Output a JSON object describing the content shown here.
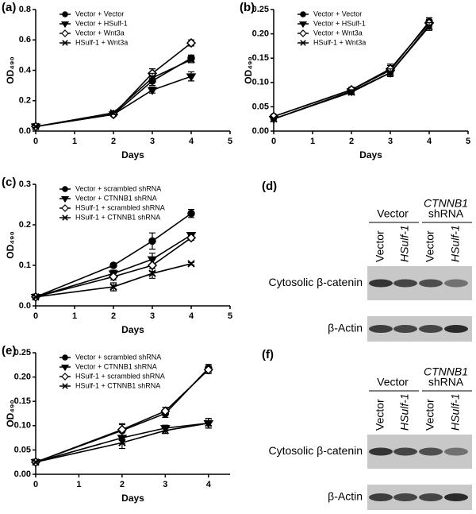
{
  "chart_data": [
    {
      "type": "line",
      "panel_label": "(a)",
      "x_label": "Days",
      "y_label": "OD₄₉₀",
      "legend": "upper left",
      "xlim": [
        0,
        5
      ],
      "xticks": [
        0,
        1,
        2,
        3,
        4,
        5
      ],
      "ylim": [
        0,
        0.8
      ],
      "yticks": [
        {
          "value": 0,
          "label": "0.0"
        },
        0.2,
        0.4,
        0.6,
        0.8
      ],
      "x": [
        0,
        2,
        3,
        4
      ],
      "series": [
        {
          "name": "Vector + Vector",
          "marker": "circle",
          "color": "#000000",
          "values": [
            0.03,
            0.11,
            0.33,
            0.48
          ],
          "errors": [
            0.005,
            0.01,
            0.03,
            0.02
          ]
        },
        {
          "name": "Vector + HSulf-1",
          "marker": "triangle",
          "color": "#000000",
          "values": [
            0.03,
            0.11,
            0.27,
            0.36
          ],
          "errors": [
            0.005,
            0.01,
            0.02,
            0.03
          ]
        },
        {
          "name": "Vector + Wnt3a",
          "marker": "diamond",
          "color": "#000000",
          "values": [
            0.03,
            0.11,
            0.38,
            0.58
          ],
          "errors": [
            0.005,
            0.01,
            0.03,
            0.02
          ]
        },
        {
          "name": "HSulf-1 + Wnt3a",
          "marker": "cross",
          "color": "#000000",
          "values": [
            0.03,
            0.12,
            0.35,
            0.47
          ],
          "errors": [
            0.005,
            0.01,
            0.03,
            0.02
          ]
        }
      ]
    },
    {
      "type": "line",
      "panel_label": "(b)",
      "x_label": "Days",
      "y_label": "OD₄₉₀",
      "legend": "upper left",
      "xlim": [
        0,
        5
      ],
      "xticks": [
        0,
        1,
        2,
        3,
        4,
        5
      ],
      "ylim": [
        0,
        0.25
      ],
      "yticks": [
        {
          "value": 0,
          "label": "0.00"
        },
        0.05,
        {
          "value": 0.1,
          "label": "0.10"
        },
        0.15,
        {
          "value": 0.2,
          "label": "0.20"
        },
        0.25
      ],
      "x": [
        0,
        2,
        3,
        4
      ],
      "series": [
        {
          "name": "Vector + Vector",
          "marker": "circle",
          "color": "#000000",
          "values": [
            0.03,
            0.085,
            0.125,
            0.225
          ],
          "errors": [
            0.002,
            0.005,
            0.01,
            0.008
          ]
        },
        {
          "name": "Vector + HSulf-1",
          "marker": "triangle",
          "color": "#000000",
          "values": [
            0.025,
            0.082,
            0.12,
            0.218
          ],
          "errors": [
            0.002,
            0.005,
            0.008,
            0.008
          ]
        },
        {
          "name": "Vector + Wnt3a",
          "marker": "diamond",
          "color": "#000000",
          "values": [
            0.03,
            0.085,
            0.128,
            0.222
          ],
          "errors": [
            0.002,
            0.005,
            0.01,
            0.008
          ]
        },
        {
          "name": "HSulf-1 + Wnt3a",
          "marker": "cross",
          "color": "#000000",
          "values": [
            0.025,
            0.08,
            0.12,
            0.215
          ],
          "errors": [
            0.002,
            0.005,
            0.008,
            0.008
          ]
        }
      ]
    },
    {
      "type": "line",
      "panel_label": "(c)",
      "x_label": "Days",
      "y_label": "OD₄₉₀",
      "legend": "upper left",
      "xlim": [
        0,
        5
      ],
      "xticks": [
        0,
        1,
        2,
        3,
        4,
        5
      ],
      "ylim": [
        0,
        0.3
      ],
      "yticks": [
        {
          "value": 0,
          "label": "0.0"
        },
        0.1,
        0.2,
        0.3
      ],
      "x": [
        0,
        2,
        3,
        4
      ],
      "series": [
        {
          "name": "Vector + scrambled shRNA",
          "marker": "circle",
          "color": "#000000",
          "values": [
            0.022,
            0.1,
            0.16,
            0.228
          ],
          "errors": [
            0.002,
            0.005,
            0.02,
            0.01
          ]
        },
        {
          "name": "Vector + CTNNB1 shRNA",
          "marker": "triangle",
          "color": "#000000",
          "values": [
            0.022,
            0.08,
            0.115,
            0.175
          ],
          "errors": [
            0.002,
            0.008,
            0.015,
            0.006
          ]
        },
        {
          "name": "HSulf-1 + scrambled shRNA",
          "marker": "diamond",
          "color": "#000000",
          "values": [
            0.022,
            0.072,
            0.1,
            0.168
          ],
          "errors": [
            0.002,
            0.008,
            0.015,
            0.006
          ]
        },
        {
          "name": "HSulf-1 + CTNNB1 shRNA",
          "marker": "cross",
          "color": "#000000",
          "values": [
            0.022,
            0.047,
            0.08,
            0.104
          ],
          "errors": [
            0.002,
            0.01,
            0.012,
            0.003
          ]
        }
      ]
    },
    {
      "type": "line",
      "panel_label": "(e)",
      "x_label": "Days",
      "y_label": "OD₄₉₀",
      "legend": "upper left",
      "xlim": [
        0,
        4.5
      ],
      "xticks": [
        0,
        1,
        2,
        3,
        4
      ],
      "ylim": [
        0,
        0.25
      ],
      "yticks": [
        {
          "value": 0,
          "label": "0.00"
        },
        0.05,
        {
          "value": 0.1,
          "label": "0.10"
        },
        0.15,
        {
          "value": 0.2,
          "label": "0.20"
        },
        0.25
      ],
      "x": [
        0,
        2,
        3,
        4
      ],
      "series": [
        {
          "name": "Vector + scrambled shRNA",
          "marker": "circle",
          "color": "#000000",
          "values": [
            0.025,
            0.09,
            0.125,
            0.218
          ],
          "errors": [
            0.002,
            0.012,
            0.008,
            0.008
          ]
        },
        {
          "name": "Vector + CTNNB1 shRNA",
          "marker": "triangle",
          "color": "#000000",
          "values": [
            0.025,
            0.075,
            0.095,
            0.105
          ],
          "errors": [
            0.002,
            0.012,
            0.006,
            0.01
          ]
        },
        {
          "name": "HSulf-1 + scrambled shRNA",
          "marker": "diamond",
          "color": "#000000",
          "values": [
            0.025,
            0.092,
            0.13,
            0.215
          ],
          "errors": [
            0.002,
            0.012,
            0.008,
            0.008
          ]
        },
        {
          "name": "HSulf-1 + CTNNB1 shRNA",
          "marker": "cross",
          "color": "#000000",
          "values": [
            0.025,
            0.065,
            0.09,
            0.105
          ],
          "errors": [
            0.002,
            0.012,
            0.006,
            0.01
          ]
        }
      ]
    }
  ],
  "blots": [
    {
      "panel_label": "(d)",
      "groups": [
        [
          "Vector"
        ],
        [
          "CTNNB1",
          "shRNA"
        ]
      ],
      "lanes": [
        "Vector",
        "HSulf-1",
        "Vector",
        "HSulf-1"
      ],
      "rows": [
        "Cytosolic β-catenin",
        "β-Actin"
      ]
    },
    {
      "panel_label": "(f)",
      "groups": [
        [
          "Vector"
        ],
        [
          "CTNNB1",
          "shRNA"
        ]
      ],
      "lanes": [
        "Vector",
        "HSulf-1",
        "Vector",
        "HSulf-1"
      ],
      "rows": [
        "Cytosolic β-catenin",
        "β-Actin"
      ]
    }
  ]
}
